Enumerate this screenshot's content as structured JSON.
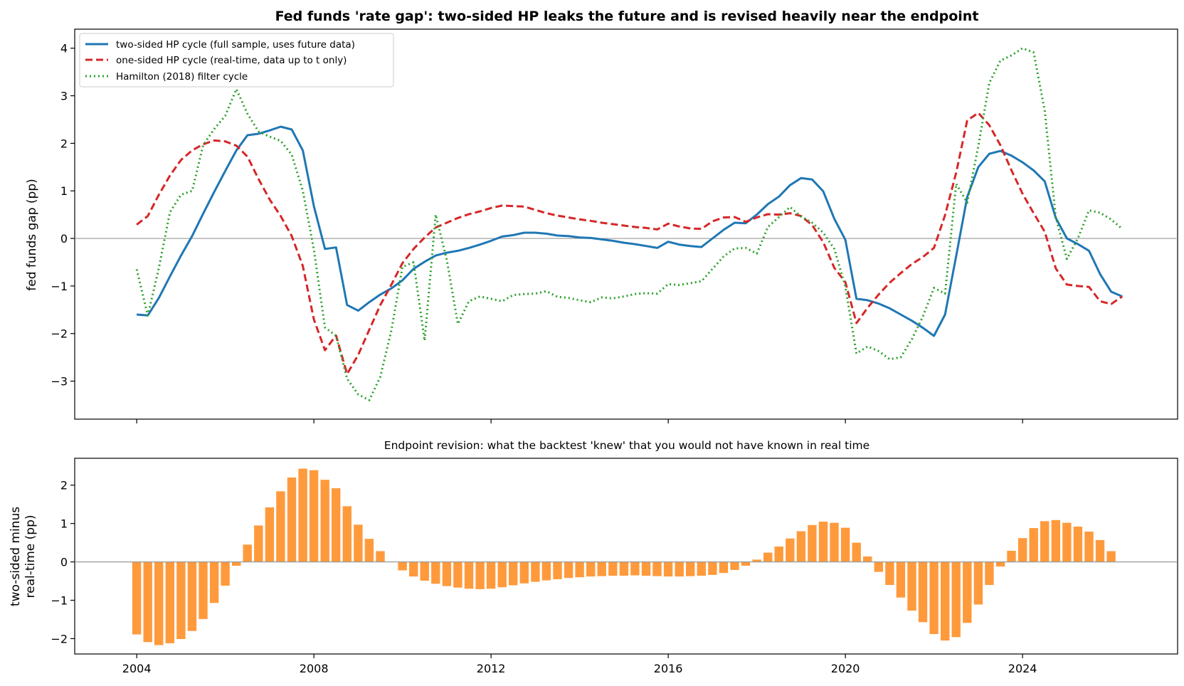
{
  "chart_data": [
    {
      "type": "line",
      "title": "Fed funds 'rate gap': two-sided HP leaks the future and is revised heavily near the endpoint",
      "xlabel": "",
      "ylabel": "fed funds gap (pp)",
      "xlim": [
        2002.6,
        2027.5
      ],
      "ylim": [
        -3.8,
        4.4
      ],
      "xticks": [
        2004,
        2008,
        2012,
        2016,
        2020,
        2024
      ],
      "yticks": [
        -3,
        -2,
        -1,
        0,
        1,
        2,
        3,
        4
      ],
      "ytick_labels": [
        "−3",
        "−2",
        "−1",
        "0",
        "1",
        "2",
        "3",
        "4"
      ],
      "grid": false,
      "legend_position": "upper left",
      "series": [
        {
          "name": "two-sided HP cycle (full sample, uses future data)",
          "color": "#1f77b4",
          "style": "solid",
          "x": [
            2004.0,
            2004.25,
            2004.5,
            2004.75,
            2005.0,
            2005.25,
            2005.5,
            2005.75,
            2006.0,
            2006.25,
            2006.5,
            2006.75,
            2007.0,
            2007.25,
            2007.5,
            2007.75,
            2008.0,
            2008.25,
            2008.5,
            2008.75,
            2009.0,
            2009.25,
            2009.5,
            2009.75,
            2010.0,
            2010.25,
            2010.5,
            2010.75,
            2011.0,
            2011.25,
            2011.5,
            2011.75,
            2012.0,
            2012.25,
            2012.5,
            2012.75,
            2013.0,
            2013.25,
            2013.5,
            2013.75,
            2014.0,
            2014.25,
            2014.5,
            2014.75,
            2015.0,
            2015.25,
            2015.5,
            2015.75,
            2016.0,
            2016.25,
            2016.5,
            2016.75,
            2017.0,
            2017.25,
            2017.5,
            2017.75,
            2018.0,
            2018.25,
            2018.5,
            2018.75,
            2019.0,
            2019.25,
            2019.5,
            2019.75,
            2020.0,
            2020.25,
            2020.5,
            2020.75,
            2021.0,
            2021.25,
            2021.5,
            2021.75,
            2022.0,
            2022.25,
            2022.5,
            2022.75,
            2023.0,
            2023.25,
            2023.5,
            2023.75,
            2024.0,
            2024.25,
            2024.5,
            2024.75,
            2025.0,
            2025.25,
            2025.5,
            2025.75,
            2026.0,
            2026.25
          ],
          "values": [
            -1.6,
            -1.62,
            -1.25,
            -0.8,
            -0.36,
            0.05,
            0.52,
            0.98,
            1.42,
            1.85,
            2.17,
            2.2,
            2.27,
            2.35,
            2.29,
            1.85,
            0.68,
            -0.22,
            -0.19,
            -1.4,
            -1.52,
            -1.34,
            -1.18,
            -1.05,
            -0.88,
            -0.64,
            -0.49,
            -0.36,
            -0.3,
            -0.26,
            -0.2,
            -0.13,
            -0.05,
            0.04,
            0.07,
            0.12,
            0.12,
            0.1,
            0.06,
            0.05,
            0.02,
            0.01,
            -0.02,
            -0.05,
            -0.09,
            -0.12,
            -0.16,
            -0.2,
            -0.07,
            -0.13,
            -0.16,
            -0.18,
            0.0,
            0.18,
            0.33,
            0.32,
            0.5,
            0.72,
            0.88,
            1.12,
            1.27,
            1.24,
            0.99,
            0.41,
            -0.03,
            -1.27,
            -1.3,
            -1.37,
            -1.47,
            -1.6,
            -1.73,
            -1.88,
            -2.05,
            -1.6,
            -0.37,
            0.87,
            1.5,
            1.78,
            1.84,
            1.74,
            1.6,
            1.43,
            1.2,
            0.43,
            0.0,
            -0.12,
            -0.26,
            -0.75,
            -1.12,
            -1.22
          ]
        },
        {
          "name": "one-sided HP cycle (real-time, data up to t only)",
          "color": "#d62728",
          "style": "dashed",
          "x": [
            2004.0,
            2004.25,
            2004.5,
            2004.75,
            2005.0,
            2005.25,
            2005.5,
            2005.75,
            2006.0,
            2006.25,
            2006.5,
            2006.75,
            2007.0,
            2007.25,
            2007.5,
            2007.75,
            2008.0,
            2008.25,
            2008.5,
            2008.75,
            2009.0,
            2009.25,
            2009.5,
            2009.75,
            2010.0,
            2010.25,
            2010.5,
            2010.75,
            2011.0,
            2011.25,
            2011.5,
            2011.75,
            2012.0,
            2012.25,
            2012.5,
            2012.75,
            2013.0,
            2013.25,
            2013.5,
            2013.75,
            2014.0,
            2014.25,
            2014.5,
            2014.75,
            2015.0,
            2015.25,
            2015.5,
            2015.75,
            2016.0,
            2016.25,
            2016.5,
            2016.75,
            2017.0,
            2017.25,
            2017.5,
            2017.75,
            2018.0,
            2018.25,
            2018.5,
            2018.75,
            2019.0,
            2019.25,
            2019.5,
            2019.75,
            2020.0,
            2020.25,
            2020.5,
            2020.75,
            2021.0,
            2021.25,
            2021.5,
            2021.75,
            2022.0,
            2022.25,
            2022.5,
            2022.75,
            2023.0,
            2023.25,
            2023.5,
            2023.75,
            2024.0,
            2024.25,
            2024.5,
            2024.75,
            2025.0,
            2025.25,
            2025.5,
            2025.75,
            2026.0,
            2026.25
          ],
          "values": [
            0.29,
            0.47,
            0.92,
            1.32,
            1.65,
            1.85,
            1.98,
            2.06,
            2.04,
            1.95,
            1.72,
            1.25,
            0.82,
            0.47,
            0.05,
            -0.58,
            -1.7,
            -2.35,
            -2.04,
            -2.85,
            -2.45,
            -1.92,
            -1.4,
            -0.97,
            -0.52,
            -0.22,
            0.02,
            0.23,
            0.33,
            0.43,
            0.51,
            0.57,
            0.64,
            0.69,
            0.68,
            0.67,
            0.6,
            0.53,
            0.48,
            0.44,
            0.4,
            0.37,
            0.33,
            0.3,
            0.27,
            0.24,
            0.22,
            0.19,
            0.31,
            0.25,
            0.21,
            0.2,
            0.36,
            0.44,
            0.45,
            0.35,
            0.44,
            0.51,
            0.5,
            0.53,
            0.47,
            0.28,
            -0.08,
            -0.62,
            -0.92,
            -1.78,
            -1.46,
            -1.18,
            -0.93,
            -0.73,
            -0.54,
            -0.39,
            -0.2,
            0.49,
            1.38,
            2.48,
            2.64,
            2.38,
            1.96,
            1.43,
            0.94,
            0.53,
            0.14,
            -0.63,
            -0.97,
            -1.0,
            -1.02,
            -1.32,
            -1.38,
            -1.22
          ]
        },
        {
          "name": "Hamilton (2018) filter cycle",
          "color": "#2ca02c",
          "style": "dotted",
          "x": [
            2004.0,
            2004.25,
            2004.5,
            2004.75,
            2005.0,
            2005.25,
            2005.5,
            2005.75,
            2006.0,
            2006.25,
            2006.5,
            2006.75,
            2007.0,
            2007.25,
            2007.5,
            2007.75,
            2008.0,
            2008.25,
            2008.5,
            2008.75,
            2009.0,
            2009.25,
            2009.5,
            2009.75,
            2010.0,
            2010.25,
            2010.5,
            2010.75,
            2011.0,
            2011.25,
            2011.5,
            2011.75,
            2012.0,
            2012.25,
            2012.5,
            2012.75,
            2013.0,
            2013.25,
            2013.5,
            2013.75,
            2014.0,
            2014.25,
            2014.5,
            2014.75,
            2015.0,
            2015.25,
            2015.5,
            2015.75,
            2016.0,
            2016.25,
            2016.5,
            2016.75,
            2017.0,
            2017.25,
            2017.5,
            2017.75,
            2018.0,
            2018.25,
            2018.5,
            2018.75,
            2019.0,
            2019.25,
            2019.5,
            2019.75,
            2020.0,
            2020.25,
            2020.5,
            2020.75,
            2021.0,
            2021.25,
            2021.5,
            2021.75,
            2022.0,
            2022.25,
            2022.5,
            2022.75,
            2023.0,
            2023.25,
            2023.5,
            2023.75,
            2024.0,
            2024.25,
            2024.5,
            2024.75,
            2025.0,
            2025.25,
            2025.5,
            2025.75,
            2026.0,
            2026.25
          ],
          "values": [
            -0.65,
            -1.62,
            -0.62,
            0.55,
            0.92,
            1.0,
            1.96,
            2.3,
            2.58,
            3.14,
            2.62,
            2.25,
            2.14,
            2.05,
            1.76,
            1.0,
            -0.23,
            -1.87,
            -2.05,
            -2.95,
            -3.28,
            -3.4,
            -2.91,
            -1.93,
            -0.6,
            -0.5,
            -2.15,
            0.5,
            -0.45,
            -1.8,
            -1.32,
            -1.22,
            -1.27,
            -1.32,
            -1.19,
            -1.17,
            -1.16,
            -1.11,
            -1.23,
            -1.25,
            -1.3,
            -1.34,
            -1.24,
            -1.26,
            -1.22,
            -1.17,
            -1.15,
            -1.16,
            -0.96,
            -0.98,
            -0.94,
            -0.9,
            -0.64,
            -0.38,
            -0.21,
            -0.2,
            -0.32,
            0.24,
            0.45,
            0.66,
            0.46,
            0.33,
            0.12,
            -0.22,
            -1.02,
            -2.42,
            -2.27,
            -2.37,
            -2.54,
            -2.5,
            -2.12,
            -1.64,
            -1.04,
            -1.16,
            1.15,
            0.75,
            1.94,
            3.27,
            3.74,
            3.85,
            4.0,
            3.91,
            2.68,
            0.44,
            -0.43,
            0.0,
            0.59,
            0.54,
            0.4,
            0.2
          ]
        }
      ]
    },
    {
      "type": "bar",
      "title": "Endpoint revision: what the backtest 'knew' that you would not have known in real time",
      "xlabel": "",
      "ylabel": "two-sided minus\nreal-time (pp)",
      "ylabel_lines": [
        "two-sided minus",
        "real-time (pp)"
      ],
      "xlim": [
        2002.6,
        2027.5
      ],
      "ylim": [
        -2.4,
        2.7
      ],
      "xticks": [
        2004,
        2008,
        2012,
        2016,
        2020,
        2024
      ],
      "xtick_labels": [
        "2004",
        "2008",
        "2012",
        "2016",
        "2020",
        "2024"
      ],
      "yticks": [
        -2,
        -1,
        0,
        1,
        2
      ],
      "ytick_labels": [
        "−2",
        "−1",
        "0",
        "1",
        "2"
      ],
      "grid": false,
      "color": "#ff9a3c",
      "x": [
        2004.0,
        2004.25,
        2004.5,
        2004.75,
        2005.0,
        2005.25,
        2005.5,
        2005.75,
        2006.0,
        2006.25,
        2006.5,
        2006.75,
        2007.0,
        2007.25,
        2007.5,
        2007.75,
        2008.0,
        2008.25,
        2008.5,
        2008.75,
        2009.0,
        2009.25,
        2009.5,
        2009.75,
        2010.0,
        2010.25,
        2010.5,
        2010.75,
        2011.0,
        2011.25,
        2011.5,
        2011.75,
        2012.0,
        2012.25,
        2012.5,
        2012.75,
        2013.0,
        2013.25,
        2013.5,
        2013.75,
        2014.0,
        2014.25,
        2014.5,
        2014.75,
        2015.0,
        2015.25,
        2015.5,
        2015.75,
        2016.0,
        2016.25,
        2016.5,
        2016.75,
        2017.0,
        2017.25,
        2017.5,
        2017.75,
        2018.0,
        2018.25,
        2018.5,
        2018.75,
        2019.0,
        2019.25,
        2019.5,
        2019.75,
        2020.0,
        2020.25,
        2020.5,
        2020.75,
        2021.0,
        2021.25,
        2021.5,
        2021.75,
        2022.0,
        2022.25,
        2022.5,
        2022.75,
        2023.0,
        2023.25,
        2023.5,
        2023.75,
        2024.0,
        2024.25,
        2024.5,
        2024.75,
        2025.0,
        2025.25,
        2025.5,
        2025.75,
        2026.0,
        2026.25
      ],
      "values": [
        -1.89,
        -2.09,
        -2.17,
        -2.12,
        -2.01,
        -1.8,
        -1.49,
        -1.07,
        -0.62,
        -0.1,
        0.45,
        0.95,
        1.42,
        1.84,
        2.2,
        2.43,
        2.39,
        2.14,
        1.92,
        1.45,
        0.97,
        0.6,
        0.28,
        0.0,
        -0.22,
        -0.38,
        -0.49,
        -0.57,
        -0.63,
        -0.67,
        -0.7,
        -0.71,
        -0.7,
        -0.66,
        -0.61,
        -0.56,
        -0.52,
        -0.48,
        -0.45,
        -0.42,
        -0.4,
        -0.38,
        -0.37,
        -0.36,
        -0.36,
        -0.35,
        -0.36,
        -0.37,
        -0.38,
        -0.38,
        -0.37,
        -0.36,
        -0.34,
        -0.29,
        -0.21,
        -0.1,
        0.06,
        0.24,
        0.4,
        0.61,
        0.8,
        0.96,
        1.05,
        1.02,
        0.89,
        0.5,
        0.14,
        -0.26,
        -0.6,
        -0.93,
        -1.27,
        -1.57,
        -1.88,
        -2.05,
        -1.96,
        -1.59,
        -1.11,
        -0.6,
        -0.12,
        0.29,
        0.62,
        0.88,
        1.06,
        1.09,
        1.02,
        0.92,
        0.79,
        0.57,
        0.28,
        0.0
      ]
    }
  ]
}
